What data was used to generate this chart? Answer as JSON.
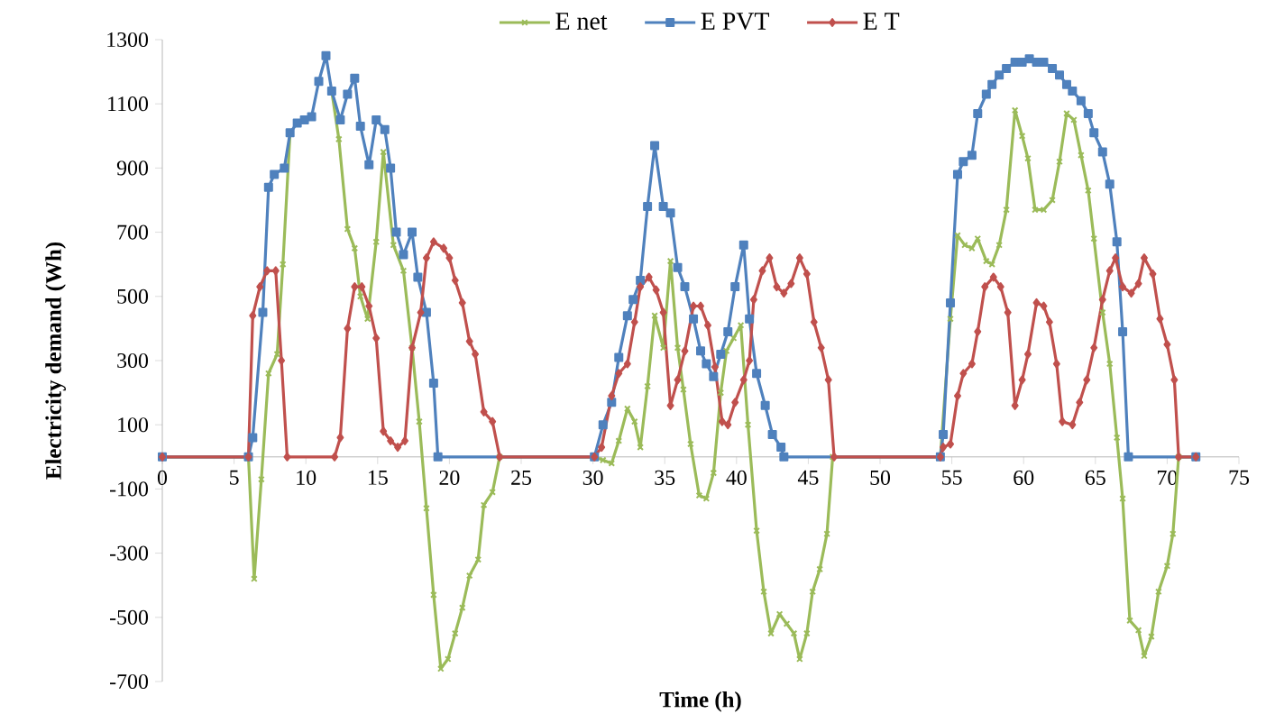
{
  "chart_data": {
    "type": "line",
    "xlabel": "Time (h)",
    "ylabel": "Electricity demand (Wh)",
    "xlim": [
      0,
      75
    ],
    "ylim": [
      -700,
      1300
    ],
    "xticks": [
      0,
      5,
      10,
      15,
      20,
      25,
      30,
      35,
      40,
      45,
      50,
      55,
      60,
      65,
      70,
      75
    ],
    "yticks": [
      -700,
      -500,
      -300,
      -100,
      100,
      300,
      500,
      700,
      900,
      1100,
      1300
    ],
    "legend": "top",
    "grid": false,
    "series": [
      {
        "name": "E net",
        "color": "#9bbb59",
        "marker": "cross",
        "x": [
          0,
          6.0,
          6.4,
          6.9,
          7.4,
          8.0,
          8.4,
          8.9,
          9.4,
          9.9,
          10.4,
          10.9,
          11.4,
          11.8,
          12.3,
          12.9,
          13.4,
          13.8,
          14.3,
          14.9,
          15.4,
          16.1,
          16.8,
          17.4,
          17.9,
          18.4,
          18.9,
          19.4,
          19.9,
          20.4,
          20.9,
          21.4,
          22.0,
          22.4,
          23.0,
          23.5,
          30.1,
          30.7,
          31.3,
          31.8,
          32.4,
          32.9,
          33.3,
          33.8,
          34.3,
          34.9,
          35.4,
          35.9,
          36.3,
          36.8,
          37.4,
          37.9,
          38.4,
          38.9,
          39.3,
          39.8,
          40.3,
          40.8,
          41.4,
          41.9,
          42.4,
          43.0,
          43.5,
          44.0,
          44.4,
          44.9,
          45.3,
          45.8,
          46.3,
          46.7,
          54.2,
          54.9,
          55.4,
          55.9,
          56.4,
          56.8,
          57.4,
          57.8,
          58.3,
          58.8,
          59.4,
          59.9,
          60.3,
          60.8,
          61.4,
          62.0,
          62.5,
          63.0,
          63.5,
          64.0,
          64.5,
          64.9,
          65.5,
          66.0,
          66.5,
          66.9,
          67.4,
          68.0,
          68.4,
          68.9,
          69.4,
          70.0,
          70.4,
          70.8,
          72.0
        ],
        "values": [
          0,
          0,
          -380,
          -70,
          260,
          320,
          600,
          1010,
          null,
          null,
          null,
          null,
          null,
          1140,
          990,
          710,
          650,
          500,
          430,
          670,
          950,
          660,
          580,
          340,
          110,
          -160,
          -430,
          -660,
          -630,
          -550,
          -470,
          -370,
          -320,
          -150,
          -110,
          0,
          0,
          -10,
          -20,
          50,
          150,
          110,
          30,
          220,
          440,
          340,
          610,
          340,
          210,
          40,
          -120,
          -130,
          -50,
          200,
          330,
          370,
          410,
          100,
          -230,
          -420,
          -550,
          -490,
          -520,
          -550,
          -630,
          -550,
          -420,
          -350,
          -240,
          0,
          0,
          430,
          690,
          660,
          650,
          680,
          610,
          600,
          660,
          770,
          1080,
          1000,
          930,
          770,
          770,
          800,
          920,
          1070,
          1050,
          940,
          830,
          680,
          450,
          290,
          60,
          -130,
          -510,
          -540,
          -620,
          -560,
          -420,
          -340,
          -240,
          0,
          0
        ]
      },
      {
        "name": "E PVT",
        "color": "#4f81bd",
        "marker": "square",
        "x": [
          0,
          6.0,
          6.3,
          7.0,
          7.4,
          7.8,
          8.5,
          8.9,
          9.4,
          9.9,
          10.4,
          10.9,
          11.4,
          11.8,
          12.4,
          12.9,
          13.4,
          13.8,
          14.4,
          14.9,
          15.5,
          15.9,
          16.3,
          16.8,
          17.4,
          17.8,
          18.4,
          18.9,
          19.2,
          30.1,
          30.7,
          31.3,
          31.8,
          32.4,
          32.8,
          33.3,
          33.8,
          34.3,
          34.9,
          35.4,
          35.9,
          36.4,
          37.0,
          37.5,
          37.9,
          38.4,
          38.9,
          39.4,
          39.9,
          40.5,
          40.9,
          41.4,
          42.0,
          42.5,
          43.1,
          43.3,
          54.2,
          54.4,
          54.9,
          55.4,
          55.8,
          56.4,
          56.8,
          57.4,
          57.8,
          58.3,
          58.8,
          59.4,
          59.9,
          60.4,
          60.9,
          61.4,
          62.0,
          62.5,
          63.0,
          63.4,
          64.0,
          64.5,
          64.9,
          65.5,
          66.0,
          66.5,
          66.9,
          67.3,
          72.0
        ],
        "values": [
          0,
          0,
          60,
          450,
          840,
          880,
          900,
          1010,
          1040,
          1050,
          1060,
          1170,
          1250,
          1140,
          1050,
          1130,
          1180,
          1030,
          910,
          1050,
          1020,
          900,
          700,
          630,
          700,
          560,
          450,
          230,
          0,
          0,
          100,
          170,
          310,
          440,
          490,
          550,
          780,
          970,
          780,
          760,
          590,
          530,
          430,
          330,
          290,
          250,
          320,
          390,
          530,
          660,
          430,
          260,
          160,
          70,
          30,
          0,
          0,
          70,
          480,
          880,
          920,
          940,
          1070,
          1130,
          1160,
          1190,
          1210,
          1230,
          1230,
          1240,
          1230,
          1230,
          1210,
          1190,
          1160,
          1140,
          1110,
          1070,
          1010,
          950,
          850,
          670,
          390,
          0,
          0
        ]
      },
      {
        "name": "E T",
        "color": "#c0504d",
        "marker": "diamond",
        "x": [
          0,
          6.0,
          6.3,
          6.8,
          7.3,
          7.9,
          8.3,
          8.7,
          12.0,
          12.4,
          12.9,
          13.4,
          13.9,
          14.4,
          14.9,
          15.4,
          15.9,
          16.4,
          16.9,
          17.4,
          18.0,
          18.4,
          18.9,
          19.6,
          20.0,
          20.4,
          20.9,
          21.4,
          21.8,
          22.4,
          23.0,
          23.5,
          30.1,
          30.6,
          31.3,
          31.8,
          32.4,
          32.9,
          33.3,
          33.9,
          34.4,
          34.9,
          35.4,
          35.9,
          36.4,
          37.0,
          37.5,
          38.0,
          38.5,
          39.0,
          39.4,
          39.9,
          40.5,
          40.9,
          41.2,
          41.8,
          42.3,
          42.8,
          43.3,
          43.8,
          44.4,
          44.9,
          45.4,
          45.9,
          46.4,
          46.8,
          54.2,
          54.4,
          54.9,
          55.4,
          55.8,
          56.4,
          56.8,
          57.3,
          57.9,
          58.4,
          58.9,
          59.4,
          59.9,
          60.3,
          60.9,
          61.4,
          61.8,
          62.3,
          62.7,
          63.4,
          63.9,
          64.4,
          64.9,
          65.5,
          66.0,
          66.4,
          66.9,
          67.5,
          68.0,
          68.4,
          69.0,
          69.5,
          70.0,
          70.5,
          70.8,
          72.0
        ],
        "values": [
          0,
          0,
          440,
          530,
          580,
          580,
          300,
          0,
          0,
          60,
          400,
          530,
          530,
          470,
          370,
          80,
          50,
          30,
          50,
          340,
          450,
          620,
          670,
          650,
          620,
          550,
          480,
          360,
          320,
          140,
          110,
          0,
          0,
          30,
          190,
          260,
          290,
          420,
          530,
          560,
          520,
          450,
          160,
          240,
          330,
          470,
          470,
          410,
          280,
          110,
          100,
          170,
          240,
          300,
          490,
          580,
          620,
          530,
          510,
          540,
          620,
          570,
          420,
          340,
          240,
          0,
          0,
          30,
          40,
          190,
          260,
          290,
          390,
          530,
          560,
          530,
          450,
          160,
          240,
          320,
          480,
          470,
          420,
          290,
          110,
          100,
          170,
          240,
          340,
          490,
          580,
          620,
          530,
          510,
          540,
          620,
          570,
          430,
          350,
          240,
          0,
          0
        ]
      }
    ]
  }
}
